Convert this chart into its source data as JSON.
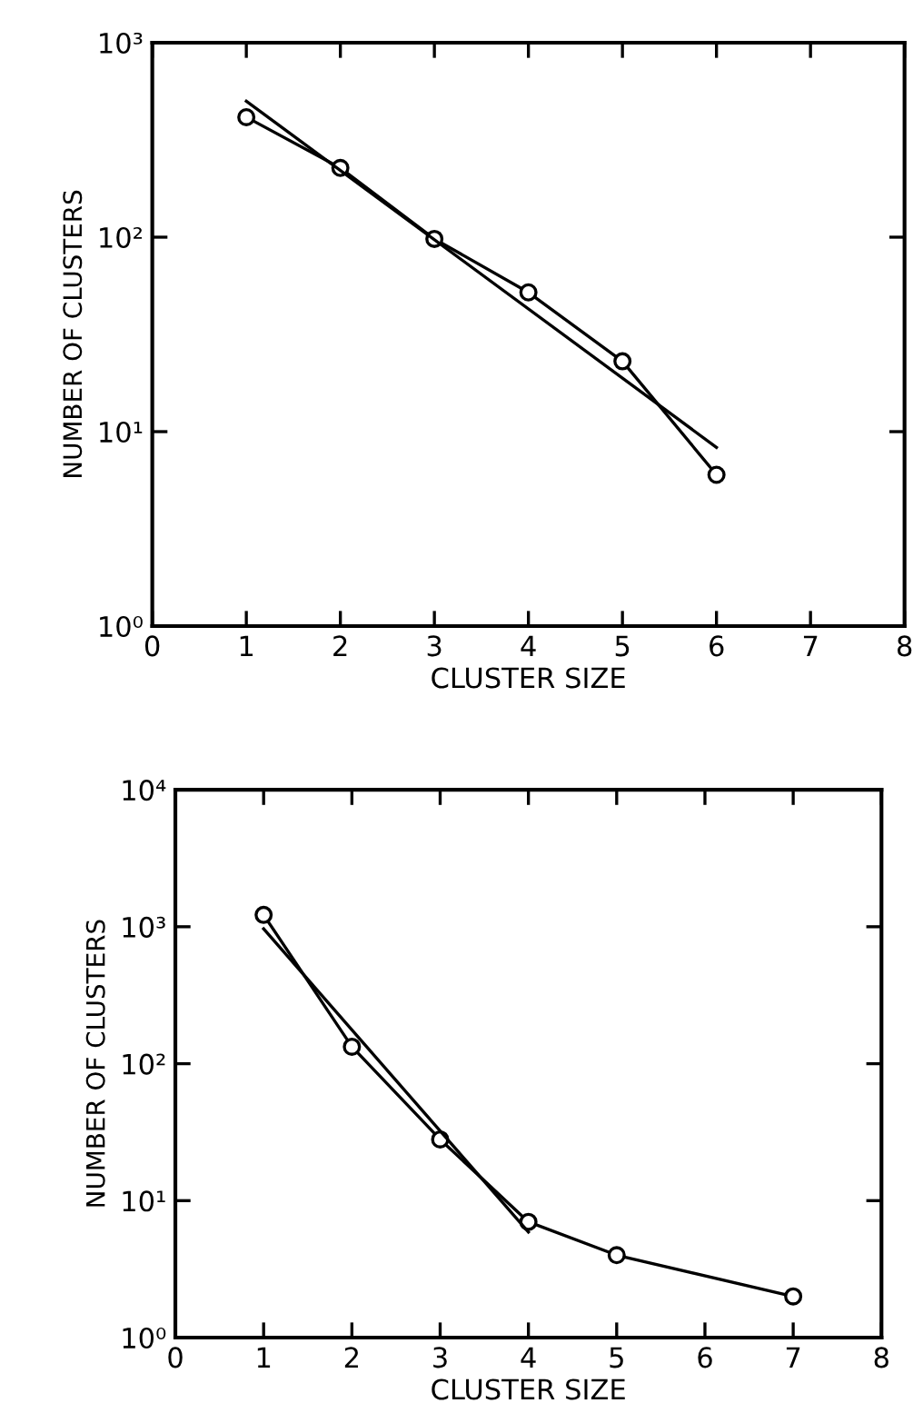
{
  "chart_data": [
    {
      "type": "line",
      "xlabel": "CLUSTER SIZE",
      "ylabel": "NUMBER OF CLUSTERS",
      "log": "y",
      "xlim": [
        0,
        8
      ],
      "xticks": [
        0,
        1,
        2,
        3,
        4,
        5,
        6,
        7,
        8
      ],
      "ylim": [
        1,
        1000
      ],
      "yticks": [
        {
          "value": 1,
          "label": "10⁰"
        },
        {
          "value": 10,
          "label": "10¹"
        },
        {
          "value": 100,
          "label": "10²"
        },
        {
          "value": 1000,
          "label": "10³"
        }
      ],
      "series": [
        {
          "color": "#000000",
          "marker": "circle",
          "x": [
            1,
            2,
            3,
            4,
            5,
            6
          ],
          "values": [
            414,
            227,
            98,
            52,
            23,
            6.0
          ]
        },
        {
          "color": "#000000",
          "marker": "none",
          "x": [
            1,
            6
          ],
          "values": [
            500,
            8.3
          ]
        }
      ]
    },
    {
      "type": "line",
      "xlabel": "CLUSTER SIZE",
      "ylabel": "NUMBER OF CLUSTERS",
      "log": "y",
      "xlim": [
        0,
        8
      ],
      "xticks": [
        0,
        1,
        2,
        3,
        4,
        5,
        6,
        7,
        8
      ],
      "ylim": [
        1,
        10000
      ],
      "yticks": [
        {
          "value": 1,
          "label": "10⁰"
        },
        {
          "value": 10,
          "label": "10¹"
        },
        {
          "value": 100,
          "label": "10²"
        },
        {
          "value": 1000,
          "label": "10³"
        },
        {
          "value": 10000,
          "label": "10⁴"
        }
      ],
      "series": [
        {
          "color": "#000000",
          "marker": "circle",
          "x": [
            1,
            2,
            3,
            4,
            5,
            7
          ],
          "values": [
            1220,
            133,
            28,
            7.0,
            4.0,
            2.0
          ]
        },
        {
          "color": "#000000",
          "marker": "none",
          "x": [
            1,
            4
          ],
          "values": [
            965,
            5.9
          ]
        }
      ]
    }
  ]
}
